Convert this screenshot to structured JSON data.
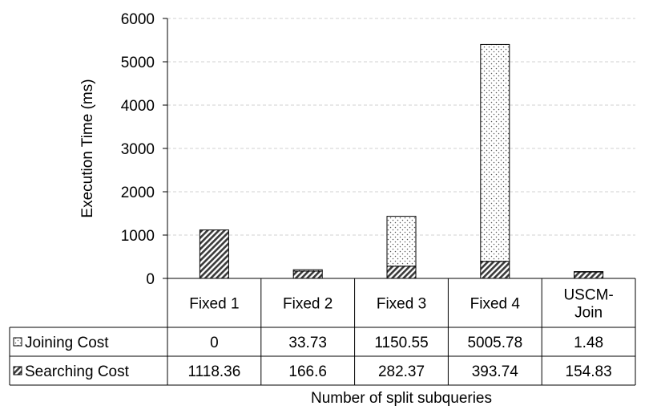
{
  "chart_data": {
    "type": "bar",
    "stacked": true,
    "categories": [
      "Fixed 1",
      "Fixed 2",
      "Fixed 3",
      "Fixed 4",
      "USCM-Join"
    ],
    "category_lines": [
      [
        "Fixed 1"
      ],
      [
        "Fixed 2"
      ],
      [
        "Fixed 3"
      ],
      [
        "Fixed 4"
      ],
      [
        "USCM-",
        "Join"
      ]
    ],
    "series": [
      {
        "name": "Searching Cost",
        "values": [
          1118.36,
          166.6,
          282.37,
          393.74,
          154.83
        ],
        "pattern": "hatched"
      },
      {
        "name": "Joining Cost",
        "values": [
          0,
          33.73,
          1150.55,
          5005.78,
          1.48
        ],
        "pattern": "dotted"
      }
    ],
    "table_rows": [
      {
        "label": "Joining Cost",
        "cells": [
          "0",
          "33.73",
          "1150.55",
          "5005.78",
          "1.48"
        ]
      },
      {
        "label": "Searching Cost",
        "cells": [
          "1118.36",
          "166.6",
          "282.37",
          "393.74",
          "154.83"
        ]
      }
    ],
    "ylim": [
      0,
      6000
    ],
    "yticks": [
      0,
      1000,
      2000,
      3000,
      4000,
      5000,
      6000
    ],
    "ylabel": "Execution Time (ms)",
    "xlabel": "Number of split subqueries",
    "grid": true,
    "legend": "data table"
  }
}
